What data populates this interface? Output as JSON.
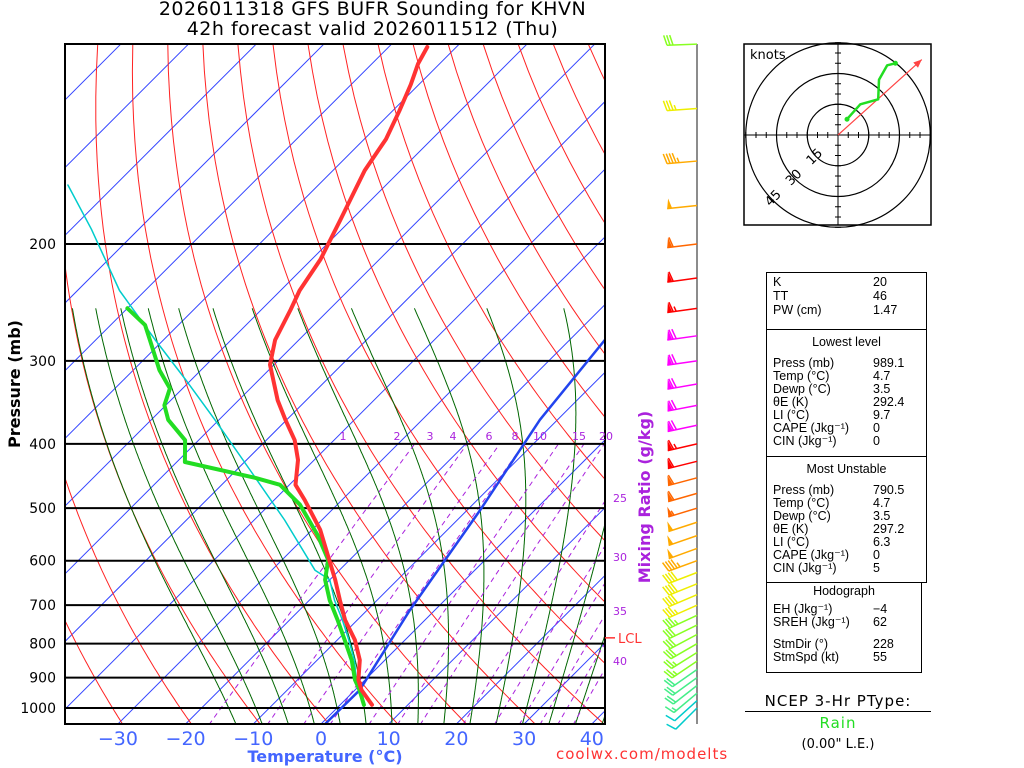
{
  "title_line1": "2026011318 GFS BUFR Sounding for KHVN",
  "title_line2": "42h forecast valid 2026011512 (Thu)",
  "colors": {
    "temperature": "#ff3333",
    "dewpoint": "#22dd22",
    "cyan_trace": "#00cccc",
    "parcel": "#2244ee",
    "isotherm": "#3344ff",
    "dry_adiabat": "#ff2222",
    "moist_adiabat": "#006600",
    "mixing_ratio": "#aa22dd",
    "lcl": "#ff3333"
  },
  "chart_data": {
    "type": "line",
    "title": "2026011318 GFS BUFR Sounding for KHVN — 42h forecast valid 2026011512 (Thu)",
    "xlabel": "Temperature (°C)",
    "ylabel": "Pressure (mb)",
    "y_scale": "log",
    "ylim": [
      1057,
      100
    ],
    "x_ticks": [
      -30,
      -20,
      -10,
      0,
      10,
      20,
      30,
      40
    ],
    "x_tick_labels": [
      "−30",
      "−20",
      "−10",
      "0",
      "10",
      "20",
      "30",
      "40"
    ],
    "y_ticks": [
      200,
      300,
      400,
      500,
      600,
      700,
      800,
      900,
      1000
    ],
    "y_tick_labels": [
      "200",
      "300",
      "400",
      "500",
      "600",
      "700",
      "800",
      "900",
      "1000"
    ],
    "mixing_ratio_label": "Mixing Ratio (g/kg)",
    "mixing_ratios": [
      1,
      2,
      3,
      4,
      6,
      8,
      10,
      15,
      20,
      25,
      30,
      35,
      40
    ],
    "lcl": {
      "label": "LCL",
      "pressure": 784
    },
    "series": [
      {
        "name": "temperature",
        "p": [
          989,
          940,
          907,
          847,
          790,
          737,
          688,
          641,
          539,
          486,
          461,
          423,
          395,
          368,
          344,
          304,
          279,
          251,
          235,
          211,
          184,
          155,
          139,
          126,
          115,
          107,
          101
        ],
        "t": [
          4.7,
          1.0,
          -1.0,
          -3.7,
          -7.4,
          -11.8,
          -15.5,
          -19.2,
          -28.8,
          -35.5,
          -39.1,
          -42.4,
          -45.8,
          -50.2,
          -54.2,
          -60.6,
          -63.5,
          -65.7,
          -67.2,
          -68.7,
          -71.6,
          -75.3,
          -76.8,
          -79.0,
          -81.2,
          -83.2,
          -84.3
        ]
      },
      {
        "name": "dewpoint",
        "p": [
          989,
          940,
          907,
          847,
          790,
          737,
          688,
          641,
          598,
          549,
          494,
          461,
          450,
          426,
          395,
          368,
          350,
          330,
          310,
          279,
          265,
          250
        ],
        "t": [
          3.5,
          0.7,
          -1.5,
          -4.9,
          -8.9,
          -12.9,
          -17.0,
          -20.7,
          -23.2,
          -28.4,
          -35.5,
          -41.4,
          -46.1,
          -58.8,
          -62.0,
          -67.5,
          -70.2,
          -71.9,
          -76.1,
          -82.0,
          -84.9,
          -90.0
        ]
      },
      {
        "name": "cyan_trace",
        "p": [
          989,
          940,
          907,
          847,
          790,
          737,
          688,
          641,
          620,
          521,
          438,
          368,
          320,
          279,
          235,
          190,
          163
        ],
        "t": [
          3.6,
          0.8,
          -1.3,
          -4.5,
          -8.3,
          -12.2,
          -16.3,
          -20.0,
          -23.6,
          -35.5,
          -48.0,
          -60.6,
          -70.9,
          -81.2,
          -93.8,
          -107,
          -117
        ]
      },
      {
        "name": "parcel",
        "p": [
          1057,
          940,
          712,
          503,
          368,
          279,
          235
        ],
        "t": [
          0.6,
          0.7,
          -3.7,
          -8.1,
          -12.6,
          -14.8,
          -16.0
        ]
      }
    ]
  },
  "winds": {
    "p": [
      1000,
      975,
      950,
      925,
      900,
      875,
      850,
      825,
      800,
      775,
      750,
      725,
      700,
      675,
      650,
      625,
      600,
      575,
      550,
      525,
      500,
      475,
      450,
      425,
      400,
      375,
      350,
      325,
      300,
      275,
      250,
      225,
      200,
      175,
      150,
      125,
      100
    ],
    "dir": [
      225,
      228,
      230,
      232,
      234,
      235,
      236,
      238,
      240,
      242,
      244,
      245,
      246,
      247,
      248,
      249,
      250,
      250,
      251,
      252,
      253,
      254,
      255,
      256,
      257,
      258,
      259,
      260,
      262,
      262,
      262,
      262,
      263,
      264,
      265,
      266,
      268
    ],
    "spd": [
      10,
      12,
      15,
      18,
      20,
      22,
      25,
      27,
      28,
      30,
      32,
      34,
      36,
      38,
      40,
      42,
      45,
      48,
      50,
      52,
      55,
      58,
      60,
      62,
      65,
      68,
      70,
      72,
      70,
      68,
      65,
      62,
      58,
      52,
      45,
      35,
      28
    ]
  },
  "hodograph": {
    "units_label": "knots",
    "rings": [
      "15",
      "30",
      "45"
    ],
    "u": [
      4.4,
      10.9,
      19.6,
      20,
      24,
      28
    ],
    "v": [
      7.7,
      15,
      17.4,
      27,
      34,
      35
    ],
    "storm_dir": 228,
    "storm_spd": 55
  },
  "indices": [
    {
      "label": "K",
      "value": "20"
    },
    {
      "label": "TT",
      "value": "46"
    },
    {
      "label": "PW (cm)",
      "value": "1.47"
    }
  ],
  "lowest_level": {
    "title": "Lowest level",
    "rows": [
      {
        "label": "Press (mb)",
        "value": "989.1"
      },
      {
        "label": "Temp (°C)",
        "value": "4.7"
      },
      {
        "label": "Dewp (°C)",
        "value": "3.5"
      },
      {
        "label": "θE (K)",
        "value": "292.4"
      },
      {
        "label": "LI (°C)",
        "value": "9.7"
      },
      {
        "label": "CAPE (Jkg⁻¹)",
        "value": "0"
      },
      {
        "label": "CIN (Jkg⁻¹)",
        "value": "0"
      }
    ]
  },
  "most_unstable": {
    "title": "Most Unstable",
    "rows": [
      {
        "label": "Press (mb)",
        "value": "790.5"
      },
      {
        "label": "Temp (°C)",
        "value": "4.7"
      },
      {
        "label": "Dewp (°C)",
        "value": "3.5"
      },
      {
        "label": "θE (K)",
        "value": "297.2"
      },
      {
        "label": "LI (°C)",
        "value": "6.3"
      },
      {
        "label": "CAPE (Jkg⁻¹)",
        "value": "0"
      },
      {
        "label": "CIN (Jkg⁻¹)",
        "value": "5"
      }
    ]
  },
  "hodo_stats": {
    "title": "Hodograph",
    "rows": [
      {
        "label": "EH (Jkg⁻¹)",
        "value": "−4"
      },
      {
        "label": "SREH (Jkg⁻¹)",
        "value": "62"
      },
      {
        "label": "StmDir (°)",
        "value": "228"
      },
      {
        "label": "StmSpd (kt)",
        "value": "55"
      }
    ]
  },
  "ptype": {
    "title": "NCEP 3-Hr PType:",
    "value": "Rain",
    "amount": "(0.00\" L.E.)",
    "value_color": "#22dd22"
  },
  "footer": "coolwx.com/modelts"
}
